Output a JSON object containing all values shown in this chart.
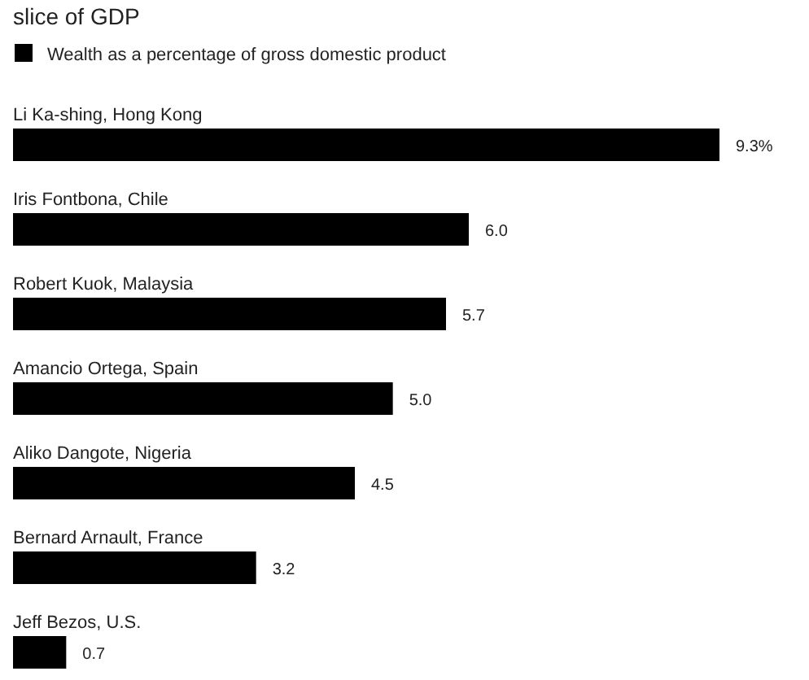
{
  "chart_data": {
    "type": "bar",
    "orientation": "horizontal",
    "title": "slice of GDP",
    "categories": [
      "Li Ka-shing, Hong Kong",
      "Iris Fontbona, Chile",
      "Robert Kuok, Malaysia",
      "Amancio Ortega, Spain",
      "Aliko Dangote, Nigeria",
      "Bernard Arnault, France",
      "Jeff Bezos, U.S."
    ],
    "series": [
      {
        "name": "Wealth as a percentage of gross domestic product",
        "color": "#000000",
        "values": [
          9.3,
          6.0,
          5.7,
          5.0,
          4.5,
          3.2,
          0.7
        ],
        "value_labels": [
          "9.3%",
          "6.0",
          "5.7",
          "5.0",
          "4.5",
          "3.2",
          "0.7"
        ]
      }
    ],
    "legend": "top left"
  }
}
